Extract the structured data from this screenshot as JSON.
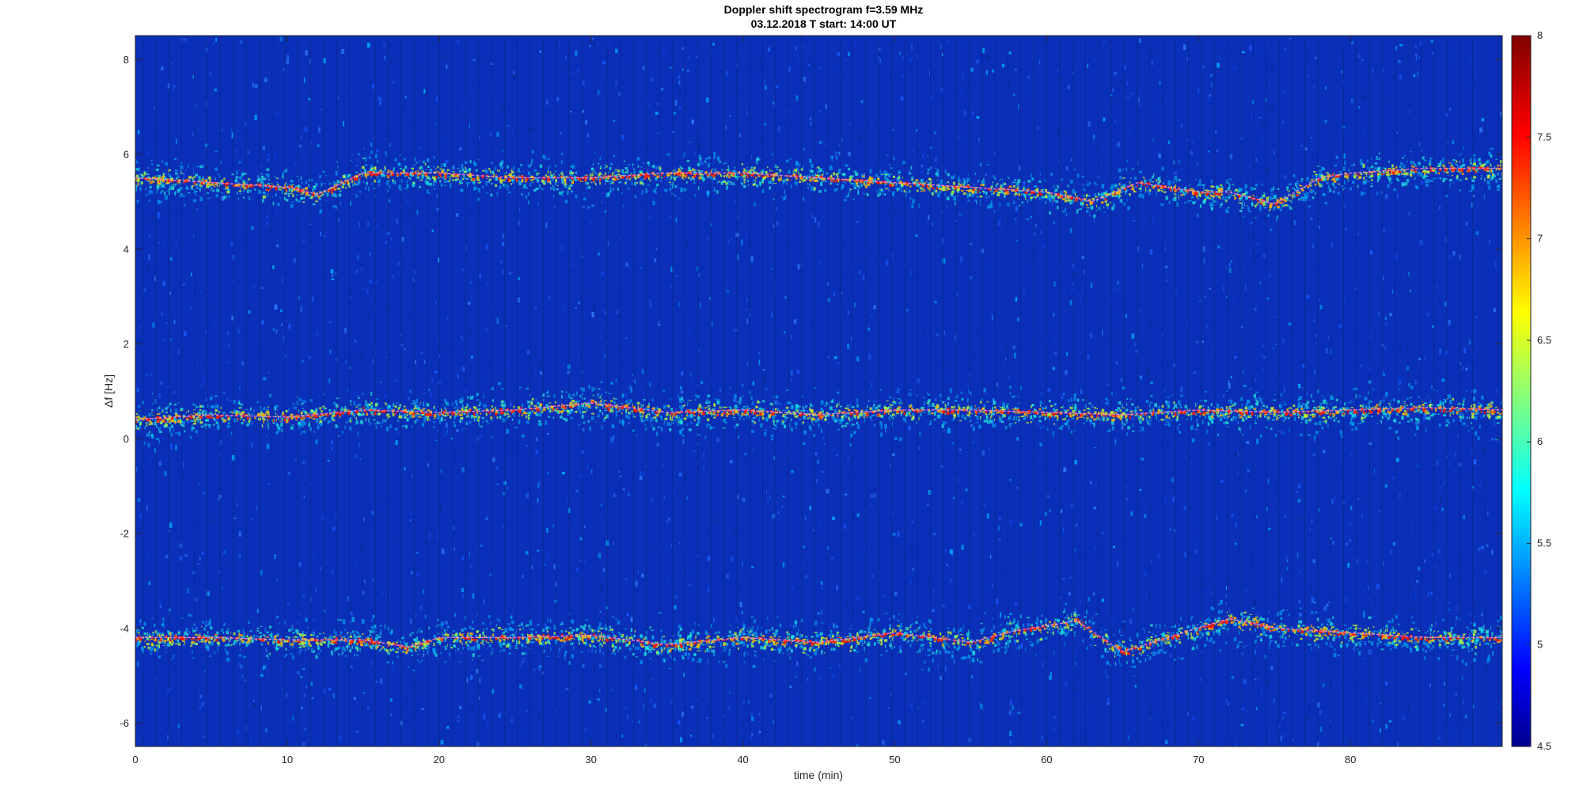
{
  "chart_data": {
    "type": "heatmap",
    "title": "Doppler shift spectrogram f=3.59 MHz",
    "subtitle": "03.12.2018   T start: 14:00 UT",
    "xlabel": "time (min)",
    "ylabel": "Δf [Hz]",
    "xlim": [
      0,
      90
    ],
    "ylim": [
      -6.5,
      8.5
    ],
    "xticks": [
      0,
      10,
      20,
      30,
      40,
      50,
      60,
      70,
      80
    ],
    "yticks": [
      -6,
      -4,
      -2,
      0,
      2,
      4,
      6,
      8
    ],
    "colorbar": {
      "colormap": "jet",
      "clim": [
        4.5,
        8
      ],
      "ticks": [
        4.5,
        5,
        5.5,
        6,
        6.5,
        7,
        7.5,
        8
      ]
    },
    "background_color": "#0a2fb8",
    "trace_color": "#ff7fd0",
    "bands": [
      {
        "name": "upper",
        "t": [
          0,
          5,
          10,
          12,
          15,
          20,
          25,
          30,
          35,
          40,
          45,
          50,
          55,
          60,
          63,
          66,
          70,
          72,
          75,
          78,
          80,
          85,
          90
        ],
        "df": [
          5.5,
          5.4,
          5.3,
          5.15,
          5.6,
          5.6,
          5.5,
          5.5,
          5.6,
          5.6,
          5.5,
          5.4,
          5.3,
          5.2,
          5.0,
          5.4,
          5.2,
          5.2,
          4.95,
          5.5,
          5.6,
          5.7,
          5.7
        ]
      },
      {
        "name": "middle",
        "t": [
          0,
          5,
          10,
          15,
          20,
          25,
          30,
          35,
          40,
          45,
          50,
          55,
          60,
          65,
          70,
          75,
          80,
          85,
          90
        ],
        "df": [
          0.4,
          0.5,
          0.45,
          0.6,
          0.55,
          0.6,
          0.75,
          0.55,
          0.6,
          0.5,
          0.6,
          0.6,
          0.55,
          0.5,
          0.6,
          0.55,
          0.6,
          0.65,
          0.6
        ]
      },
      {
        "name": "lower",
        "t": [
          0,
          5,
          10,
          15,
          18,
          20,
          25,
          30,
          35,
          40,
          45,
          50,
          55,
          58,
          62,
          65,
          70,
          72,
          75,
          80,
          85,
          90
        ],
        "df": [
          -4.2,
          -4.2,
          -4.25,
          -4.25,
          -4.4,
          -4.2,
          -4.2,
          -4.15,
          -4.35,
          -4.2,
          -4.3,
          -4.1,
          -4.3,
          -4.05,
          -3.85,
          -4.5,
          -4.0,
          -3.8,
          -4.0,
          -4.1,
          -4.2,
          -4.2
        ]
      }
    ]
  }
}
